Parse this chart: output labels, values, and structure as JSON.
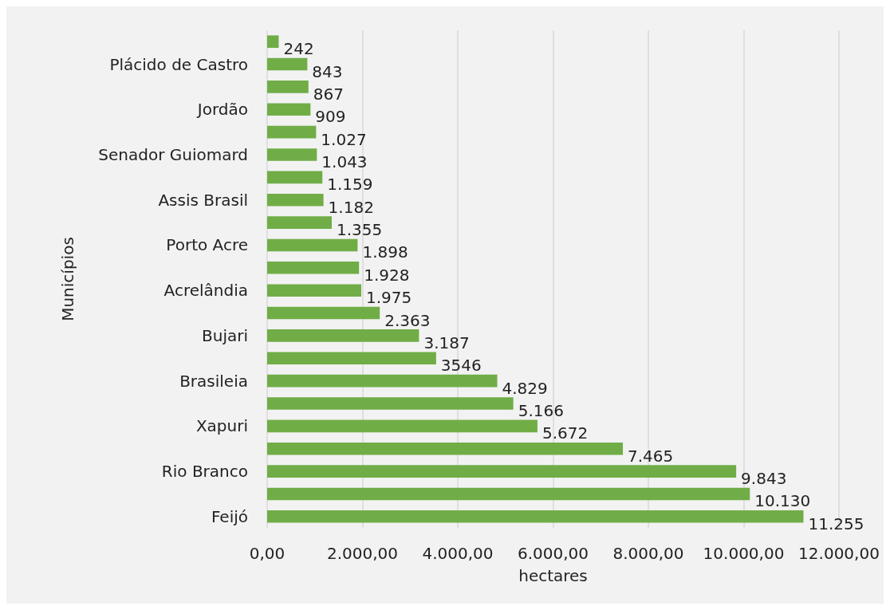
{
  "chart_data": {
    "type": "bar",
    "orientation": "horizontal",
    "xlabel": "hectares",
    "ylabel": "Municípios",
    "categories": [
      null,
      "Plácido de Castro",
      null,
      "Jordão",
      null,
      "Senador Guiomard",
      null,
      "Assis Brasil",
      null,
      "Porto Acre",
      null,
      "Acrelândia",
      null,
      "Bujari",
      null,
      "Brasileia",
      null,
      "Xapuri",
      null,
      "Rio Branco",
      null,
      "Feijó"
    ],
    "values": [
      242,
      843,
      867,
      909,
      1027,
      1043,
      1159,
      1182,
      1355,
      1898,
      1928,
      1975,
      2363,
      3187,
      3546,
      4829,
      5166,
      5672,
      7465,
      9843,
      10130,
      11255
    ],
    "value_labels": [
      "242",
      "843",
      "867",
      "909",
      "1.027",
      "1.043",
      "1.159",
      "1.182",
      "1.355",
      "1.898",
      "1.928",
      "1.975",
      "2.363",
      "3.187",
      "3546",
      "4.829",
      "5.166",
      "5.672",
      "7.465",
      "9.843",
      "10.130",
      "11.255"
    ],
    "color": "#70ad47",
    "xlim": [
      0,
      12000
    ],
    "xticks": [
      {
        "value": 0,
        "label": "0,00"
      },
      {
        "value": 2000,
        "label": "2.000,00"
      },
      {
        "value": 4000,
        "label": "4.000,00"
      },
      {
        "value": 6000,
        "label": "6.000,00"
      },
      {
        "value": 8000,
        "label": "8.000,00"
      },
      {
        "value": 10000,
        "label": "10.000,00"
      },
      {
        "value": 12000,
        "label": "12.000,00"
      }
    ],
    "grid": "x"
  }
}
